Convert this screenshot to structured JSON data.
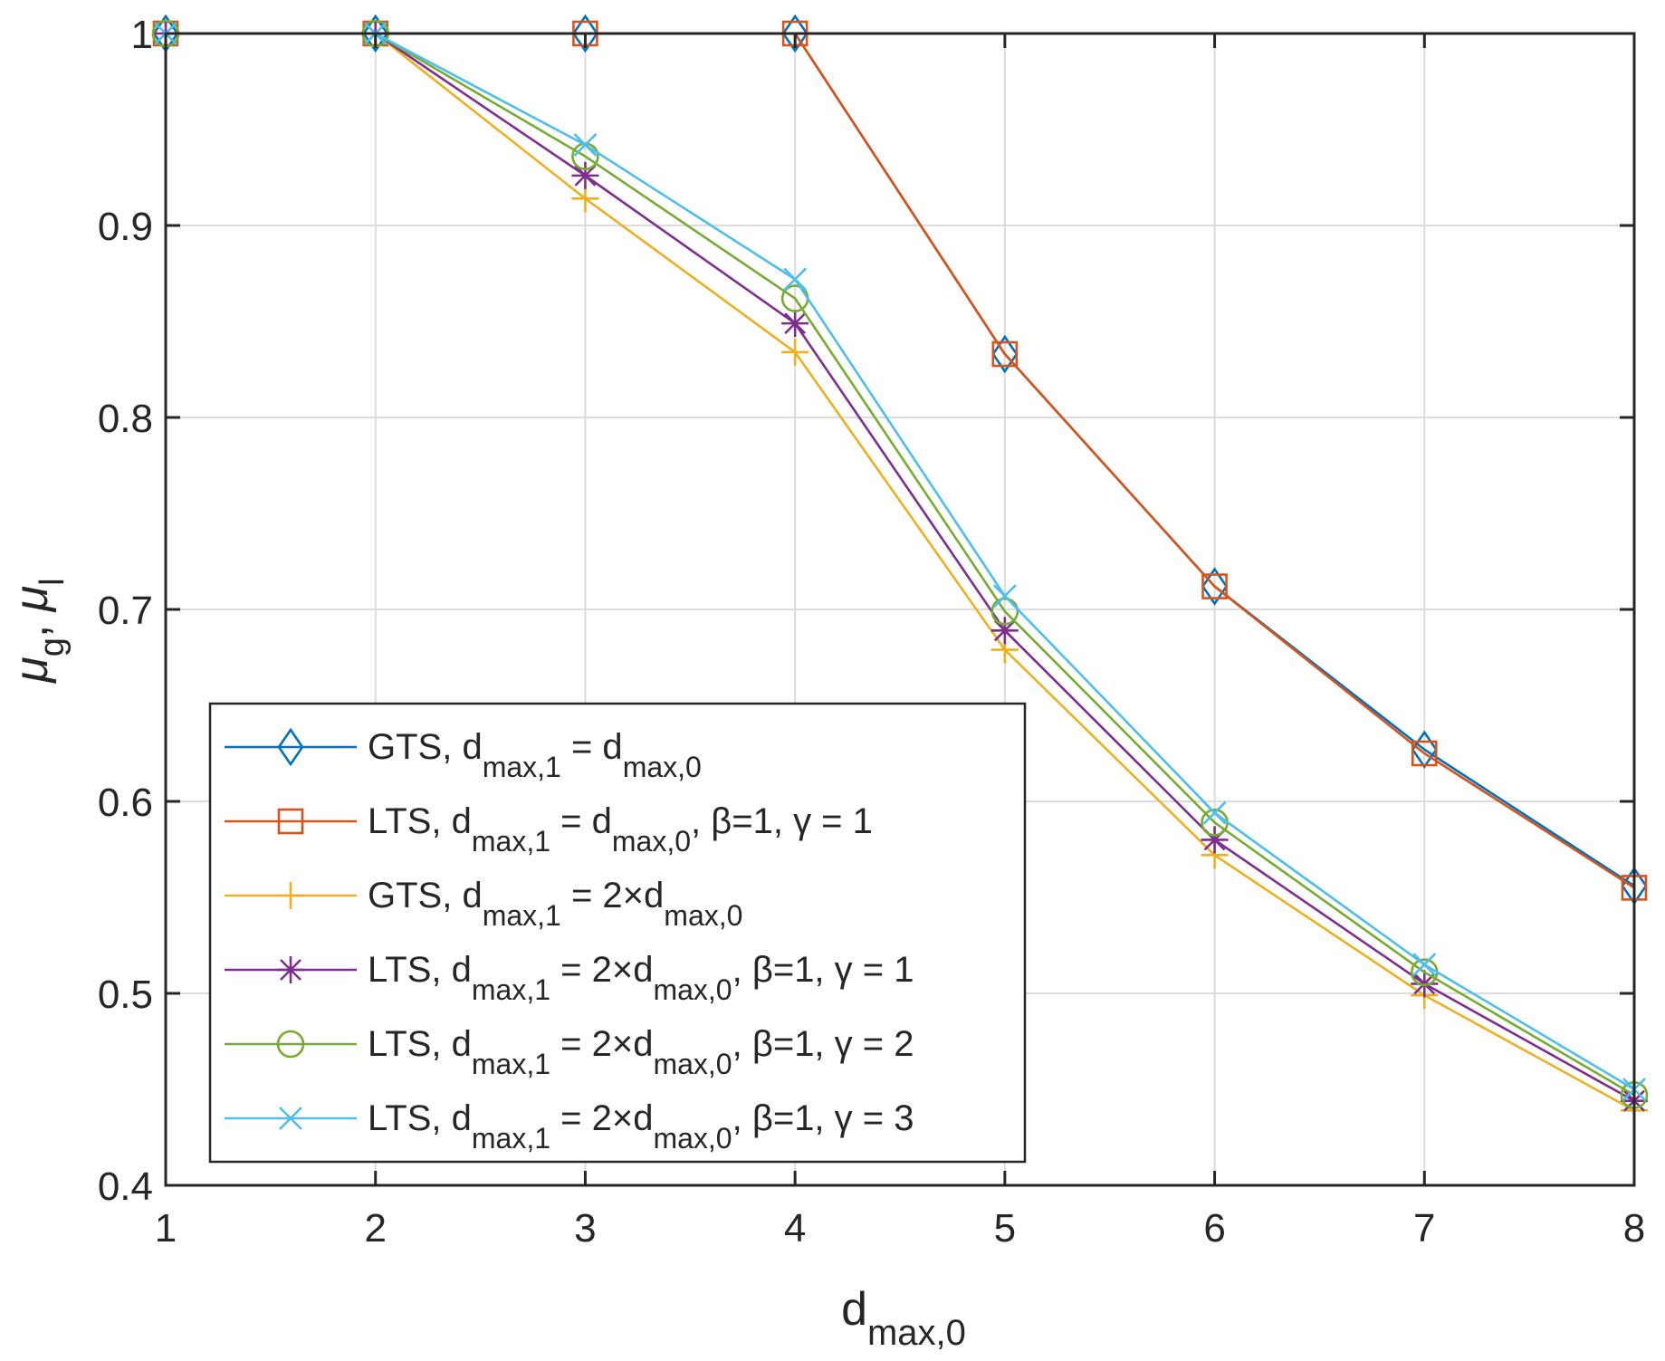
{
  "chart_data": {
    "type": "line",
    "title": "",
    "xlabel": {
      "main": "d",
      "sub": "max,0"
    },
    "ylabel": {
      "main_g": "μ",
      "sub_g": "g",
      "sep": ", ",
      "main_l": "μ",
      "sub_l": "l"
    },
    "xlim": [
      1,
      8
    ],
    "ylim": [
      0.4,
      1.0
    ],
    "grid": true,
    "legend_position": "bottom-left",
    "x": [
      1,
      2,
      3,
      4,
      5,
      6,
      7,
      8
    ],
    "x_ticks": [
      "1",
      "2",
      "3",
      "4",
      "5",
      "6",
      "7",
      "8"
    ],
    "y_ticks": [
      "0.4",
      "0.5",
      "0.6",
      "0.7",
      "0.8",
      "0.9",
      "1"
    ],
    "y_tick_values": [
      0.4,
      0.5,
      0.6,
      0.7,
      0.8,
      0.9,
      1.0
    ],
    "series": [
      {
        "name": "GTS, d_max,1 = d_max,0",
        "legend": {
          "a": "GTS, d",
          "s1": "max,1",
          "b": " = d",
          "s2": "max,0",
          "c": ""
        },
        "color": "#0072BD",
        "marker": "diamond",
        "values": [
          1.0,
          1.0,
          1.0,
          1.0,
          0.833,
          0.712,
          0.627,
          0.556
        ]
      },
      {
        "name": "LTS, d_max,1 = d_max,0, β=1, γ = 1",
        "legend": {
          "a": "LTS, d",
          "s1": "max,1",
          "b": " = d",
          "s2": "max,0",
          "c": ", β=1, γ = 1"
        },
        "color": "#D95319",
        "marker": "square",
        "values": [
          1.0,
          1.0,
          1.0,
          1.0,
          0.833,
          0.712,
          0.625,
          0.555
        ]
      },
      {
        "name": "GTS, d_max,1 = 2×d_max,0",
        "legend": {
          "a": "GTS, d",
          "s1": "max,1",
          "b": " = 2×d",
          "s2": "max,0",
          "c": ""
        },
        "color": "#EDB120",
        "marker": "plus",
        "values": [
          1.0,
          1.0,
          0.914,
          0.834,
          0.679,
          0.572,
          0.499,
          0.439
        ]
      },
      {
        "name": "LTS, d_max,1 = 2×d_max,0, β=1, γ = 1",
        "legend": {
          "a": "LTS, d",
          "s1": "max,1",
          "b": " = 2×d",
          "s2": "max,0",
          "c": ", β=1, γ = 1"
        },
        "color": "#7E2F8E",
        "marker": "asterisk",
        "values": [
          1.0,
          1.0,
          0.926,
          0.849,
          0.689,
          0.58,
          0.505,
          0.444
        ]
      },
      {
        "name": "LTS, d_max,1 = 2×d_max,0, β=1, γ = 2",
        "legend": {
          "a": "LTS, d",
          "s1": "max,1",
          "b": " = 2×d",
          "s2": "max,0",
          "c": ", β=1, γ = 2"
        },
        "color": "#77AC30",
        "marker": "circle",
        "values": [
          1.0,
          1.0,
          0.936,
          0.862,
          0.699,
          0.589,
          0.511,
          0.447
        ]
      },
      {
        "name": "LTS, d_max,1 = 2×d_max,0, β=1, γ = 3",
        "legend": {
          "a": "LTS, d",
          "s1": "max,1",
          "b": " = 2×d",
          "s2": "max,0",
          "c": ", β=1, γ = 3"
        },
        "color": "#4DBEEE",
        "marker": "x",
        "values": [
          1.0,
          1.0,
          0.942,
          0.872,
          0.707,
          0.594,
          0.515,
          0.45
        ]
      }
    ]
  }
}
